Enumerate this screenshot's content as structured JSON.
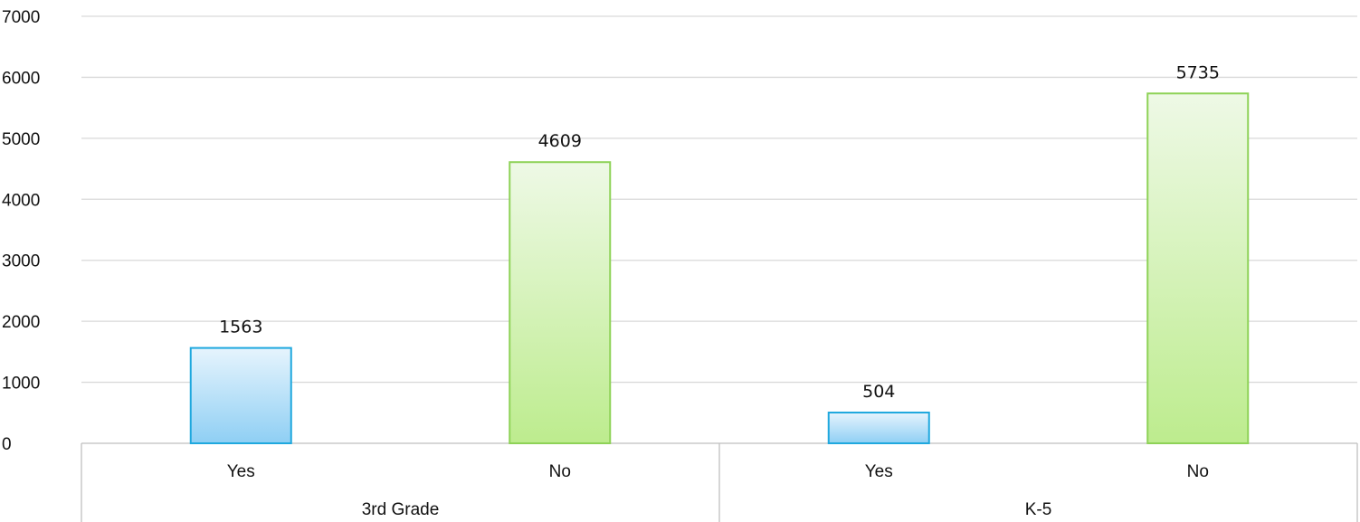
{
  "chart_data": {
    "type": "bar",
    "title": "",
    "xlabel": "",
    "ylabel": "",
    "ylim": [
      0,
      7000
    ],
    "ytick_step": 1000,
    "ytick_labels": [
      "0",
      "1000",
      "2000",
      "3000",
      "4000",
      "5000",
      "6000",
      "7000"
    ],
    "grid": true,
    "legend": "none",
    "groups": [
      {
        "label": "3rd Grade",
        "bars": [
          {
            "category": "Yes",
            "value": 1563,
            "label": "1563"
          },
          {
            "category": "No",
            "value": 4609,
            "label": "4609"
          }
        ]
      },
      {
        "label": "K-5",
        "bars": [
          {
            "category": "Yes",
            "value": 504,
            "label": "504"
          },
          {
            "category": "No",
            "value": 5735,
            "label": "5735"
          }
        ]
      }
    ],
    "colors": {
      "Yes": {
        "stroke": "#1fa8de",
        "fill_top": "#e6f4fd",
        "fill_bottom": "#8fcff4"
      },
      "No": {
        "stroke": "#8ed257",
        "fill_top": "#eef9e6",
        "fill_bottom": "#bdec8e"
      },
      "grid": "#d9d9d9",
      "axis": "#bfbfbf"
    }
  }
}
